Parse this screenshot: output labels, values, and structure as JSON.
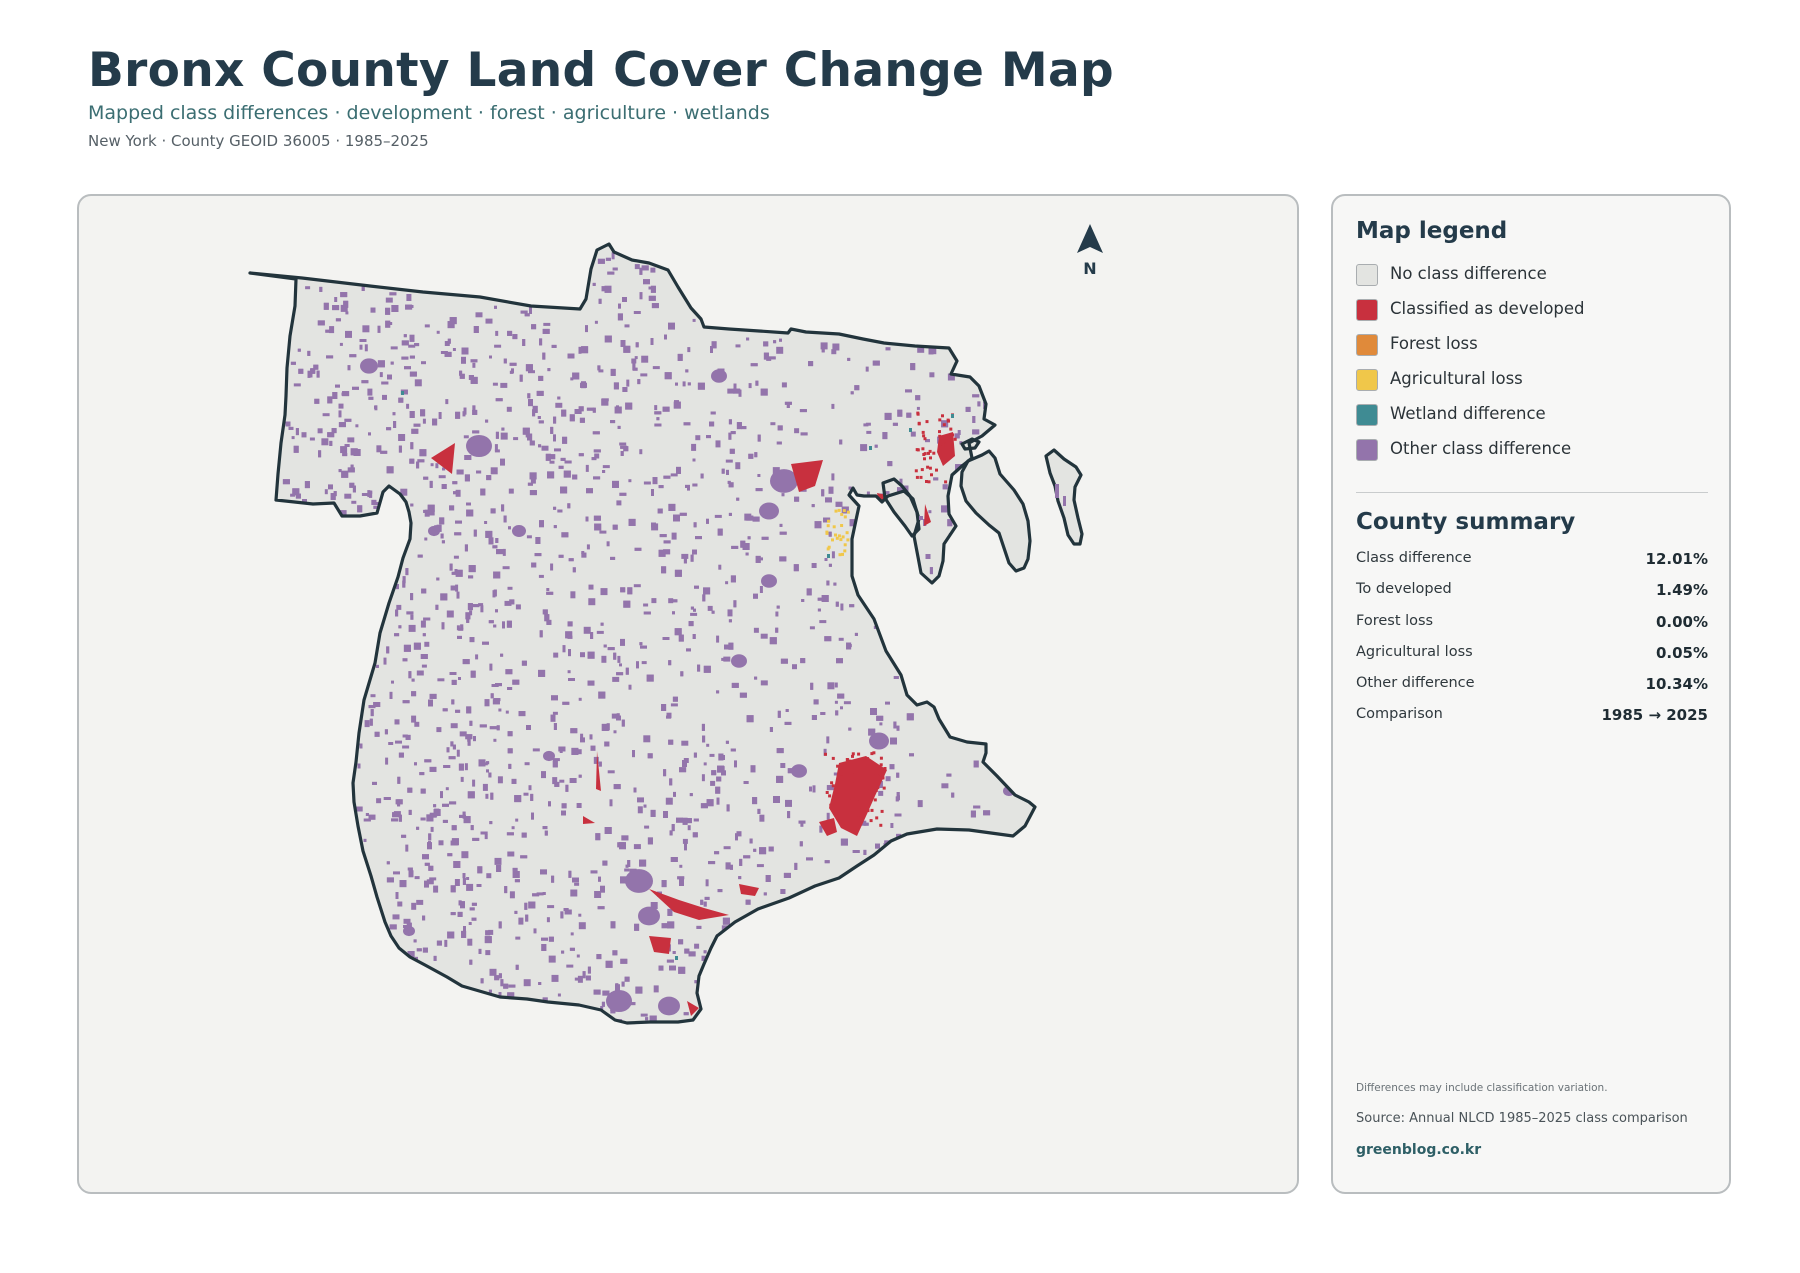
{
  "header": {
    "title": "Bronx County Land Cover Change Map",
    "subtitle": "Mapped class differences · development · forest · agriculture · wetlands",
    "meta": "New York · County GEOID 36005 · 1985–2025"
  },
  "map": {
    "north_label": "N",
    "colors": {
      "no_change": "#e3e4e1",
      "developed": "#c8303e",
      "forest_loss": "#e08a3a",
      "agricultural_loss": "#f0c74a",
      "wetland": "#3f8b93",
      "other": "#9374ab",
      "outline": "#22343c"
    }
  },
  "legend": {
    "title": "Map legend",
    "items": [
      {
        "label": "No class difference",
        "color": "#e3e4e1"
      },
      {
        "label": "Classified as developed",
        "color": "#c8303e"
      },
      {
        "label": "Forest loss",
        "color": "#e08a3a"
      },
      {
        "label": "Agricultural loss",
        "color": "#f0c74a"
      },
      {
        "label": "Wetland difference",
        "color": "#3f8b93"
      },
      {
        "label": "Other class difference",
        "color": "#9374ab"
      }
    ]
  },
  "summary": {
    "title": "County summary",
    "rows": [
      {
        "label": "Class difference",
        "value": "12.01%"
      },
      {
        "label": "To developed",
        "value": "1.49%"
      },
      {
        "label": "Forest loss",
        "value": "0.00%"
      },
      {
        "label": "Agricultural loss",
        "value": "0.05%"
      },
      {
        "label": "Other difference",
        "value": "10.34%"
      },
      {
        "label": "Comparison",
        "value": "1985 → 2025"
      }
    ]
  },
  "footer": {
    "note": "Differences may include classification variation.",
    "source": "Source: Annual NLCD 1985–2025 class comparison",
    "site": "greenblog.co.kr"
  }
}
